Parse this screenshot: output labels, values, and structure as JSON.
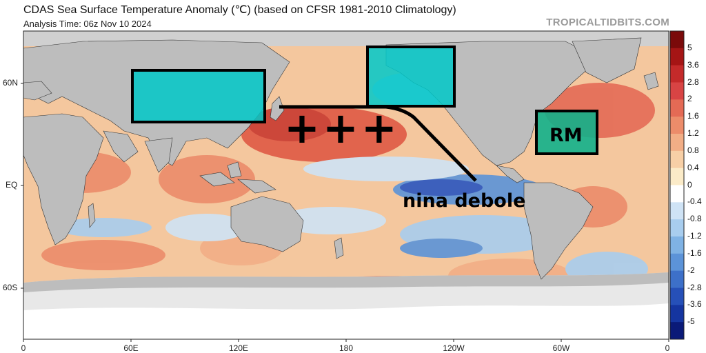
{
  "header": {
    "title": "CDAS Sea Surface Temperature Anomaly (℃) (based on CFSR 1981-2010 Climatology)",
    "analysis_time": "Analysis Time: 06z Nov 10 2024",
    "site": "TROPICALTIDBITS.COM"
  },
  "axes": {
    "lat_labels": [
      "60N",
      "EQ",
      "60S"
    ],
    "lon_labels": [
      "0",
      "60E",
      "120E",
      "180",
      "120W",
      "60W",
      "0"
    ]
  },
  "colorbar": {
    "labels": [
      "5",
      "3.6",
      "2.8",
      "2",
      "1.6",
      "1.2",
      "0.8",
      "0.4",
      "0",
      "-0.4",
      "-0.8",
      "-1.2",
      "-1.6",
      "-2",
      "-2.8",
      "-3.6",
      "-5"
    ],
    "colors": [
      "#7a0a0a",
      "#a51515",
      "#c42a2a",
      "#d84444",
      "#e46a55",
      "#ec8c6a",
      "#f2ae86",
      "#f7cfa6",
      "#fbebc8",
      "#ffffff",
      "#cfe3f5",
      "#a8cdee",
      "#7fb2e4",
      "#5c93d8",
      "#3d70c9",
      "#2650b8",
      "#1535a0",
      "#0a1a78"
    ]
  },
  "annotations": {
    "plus_marks": "+++",
    "nina_text": "nina debole",
    "rm_text": "RM",
    "box_colors": {
      "fill": "#00c8c8",
      "stroke": "#000000"
    }
  },
  "palette": {
    "ocean_warm": "#f4b98c",
    "ocean_hot": "#e05a45",
    "ocean_cool": "#a8cdee",
    "ocean_cold": "#2a55c0",
    "land": "#bdbdbd",
    "ice": "#e8e8e8"
  }
}
